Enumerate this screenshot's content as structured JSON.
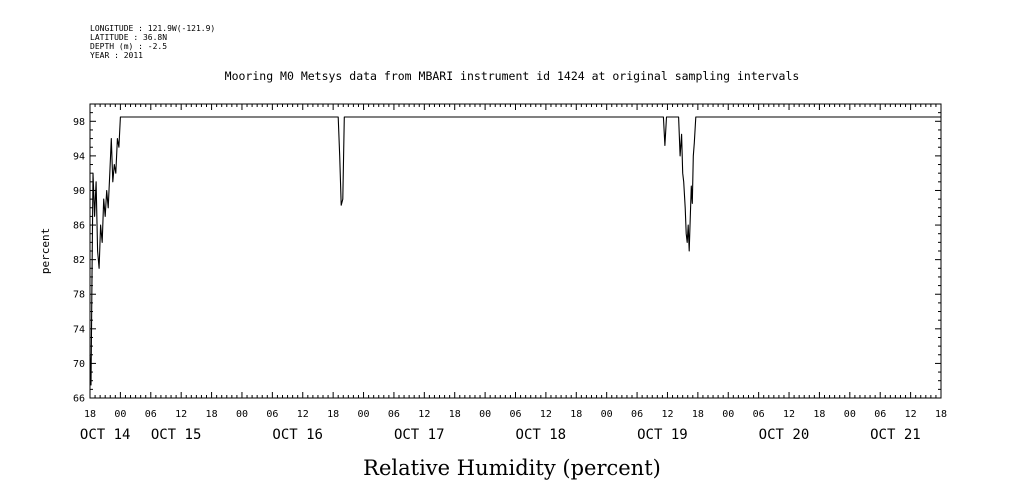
{
  "metadata": [
    "LONGITUDE : 121.9W(-121.9)",
    "LATITUDE : 36.8N",
    "DEPTH (m) : -2.5",
    "YEAR : 2011"
  ],
  "chart_data": {
    "type": "line",
    "title": "Mooring M0 Metsys data from MBARI instrument id 1424 at original sampling intervals",
    "xlabel": "Relative Humidity (percent)",
    "ylabel": "percent",
    "ylim": [
      66,
      100
    ],
    "y_ticks": [
      66,
      70,
      74,
      78,
      82,
      86,
      90,
      94,
      98
    ],
    "x_units": "hours since Oct 14 00:00 (2011)",
    "xlim": [
      -6,
      162
    ],
    "x_tick_labels": [
      {
        "h": -6,
        "label": "18"
      },
      {
        "h": 0,
        "label": "00"
      },
      {
        "h": 6,
        "label": "06"
      },
      {
        "h": 12,
        "label": "12"
      },
      {
        "h": 18,
        "label": "18"
      },
      {
        "h": 24,
        "label": "00"
      },
      {
        "h": 30,
        "label": "06"
      },
      {
        "h": 36,
        "label": "12"
      },
      {
        "h": 42,
        "label": "18"
      },
      {
        "h": 48,
        "label": "00"
      },
      {
        "h": 54,
        "label": "06"
      },
      {
        "h": 60,
        "label": "12"
      },
      {
        "h": 66,
        "label": "18"
      },
      {
        "h": 72,
        "label": "00"
      },
      {
        "h": 78,
        "label": "06"
      },
      {
        "h": 84,
        "label": "12"
      },
      {
        "h": 90,
        "label": "18"
      },
      {
        "h": 96,
        "label": "00"
      },
      {
        "h": 102,
        "label": "06"
      },
      {
        "h": 108,
        "label": "12"
      },
      {
        "h": 114,
        "label": "18"
      },
      {
        "h": 120,
        "label": "00"
      },
      {
        "h": 126,
        "label": "06"
      },
      {
        "h": 132,
        "label": "12"
      },
      {
        "h": 138,
        "label": "18"
      },
      {
        "h": 144,
        "label": "00"
      },
      {
        "h": 150,
        "label": "06"
      },
      {
        "h": 156,
        "label": "12"
      },
      {
        "h": 162,
        "label": "18"
      }
    ],
    "date_labels": [
      {
        "h": -3,
        "label": "OCT 14"
      },
      {
        "h": 11,
        "label": "OCT 15"
      },
      {
        "h": 35,
        "label": "OCT 16"
      },
      {
        "h": 59,
        "label": "OCT 17"
      },
      {
        "h": 83,
        "label": "OCT 18"
      },
      {
        "h": 107,
        "label": "OCT 19"
      },
      {
        "h": 131,
        "label": "OCT 20"
      },
      {
        "h": 153,
        "label": "OCT 21"
      }
    ],
    "series": [
      {
        "points": [
          [
            -6.0,
            71.0
          ],
          [
            -5.8,
            67.5
          ],
          [
            -5.6,
            80.0
          ],
          [
            -5.4,
            92.0
          ],
          [
            -5.1,
            87.0
          ],
          [
            -4.8,
            91.0
          ],
          [
            -4.5,
            83.0
          ],
          [
            -4.2,
            81.0
          ],
          [
            -3.9,
            86.0
          ],
          [
            -3.6,
            84.0
          ],
          [
            -3.3,
            89.0
          ],
          [
            -3.0,
            87.0
          ],
          [
            -2.7,
            90.0
          ],
          [
            -2.4,
            88.0
          ],
          [
            -2.1,
            92.0
          ],
          [
            -1.8,
            96.0
          ],
          [
            -1.5,
            91.0
          ],
          [
            -1.2,
            93.0
          ],
          [
            -0.9,
            92.0
          ],
          [
            -0.6,
            96.0
          ],
          [
            -0.3,
            95.0
          ],
          [
            0.0,
            98.5
          ],
          [
            43.0,
            98.5
          ],
          [
            43.3,
            94.0
          ],
          [
            43.6,
            88.3
          ],
          [
            43.9,
            89.0
          ],
          [
            44.2,
            98.5
          ],
          [
            107.2,
            98.5
          ],
          [
            107.5,
            95.2
          ],
          [
            107.8,
            98.5
          ],
          [
            110.2,
            98.5
          ],
          [
            110.5,
            94.0
          ],
          [
            110.8,
            96.5
          ],
          [
            111.0,
            92.0
          ],
          [
            111.2,
            91.0
          ],
          [
            111.5,
            88.0
          ],
          [
            111.7,
            85.0
          ],
          [
            111.9,
            84.0
          ],
          [
            112.1,
            86.0
          ],
          [
            112.3,
            83.0
          ],
          [
            112.5,
            87.0
          ],
          [
            112.7,
            90.5
          ],
          [
            112.9,
            88.5
          ],
          [
            113.1,
            94.0
          ],
          [
            113.3,
            95.5
          ],
          [
            113.6,
            98.5
          ],
          [
            162.0,
            98.5
          ]
        ]
      }
    ]
  }
}
